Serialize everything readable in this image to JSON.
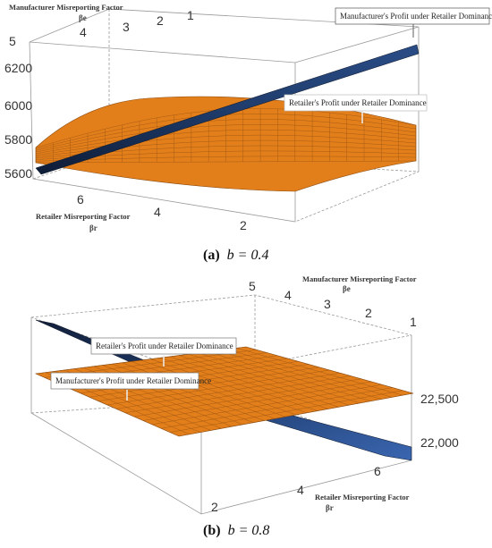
{
  "chart_data": [
    {
      "type": "surface3d",
      "caption": {
        "letter": "(a)",
        "expr": "b = 0.4"
      },
      "axes": {
        "be": {
          "label": "Manufacturer Misreporting Factor",
          "symbol": "βe",
          "ticks": [
            "5",
            "4",
            "3",
            "2",
            "1"
          ]
        },
        "br": {
          "label": "Retailer Misreporting Factor",
          "symbol": "βr",
          "ticks": [
            "6",
            "4",
            "2"
          ]
        },
        "z": {
          "ticks": [
            "6200",
            "6000",
            "5800",
            "5600"
          ],
          "range": [
            5560,
            6300
          ]
        }
      },
      "series": [
        {
          "name": "Manufacturer's Profit under Retailer Dominance",
          "color": "#1e3a66",
          "z_range": [
            5580,
            6280
          ]
        },
        {
          "name": "Retailer's Profit under Retailer Dominance",
          "color": "#e0801c",
          "z_range": [
            5700,
            6010
          ]
        }
      ]
    },
    {
      "type": "surface3d",
      "caption": {
        "letter": "(b)",
        "expr": "b = 0.8"
      },
      "axes": {
        "be": {
          "label": "Manufacturer Misreporting Factor",
          "symbol": "βe",
          "ticks": [
            "5",
            "4",
            "3",
            "2",
            "1"
          ]
        },
        "br": {
          "label": "Retailer Misreporting Factor",
          "symbol": "βr",
          "ticks": [
            "2",
            "4",
            "6"
          ]
        },
        "z": {
          "ticks": [
            "22,500",
            "22,000"
          ],
          "range": [
            21700,
            22900
          ]
        }
      },
      "series": [
        {
          "name": "Retailer's Profit under Retailer Dominance",
          "color": "#e0801c",
          "z_range": [
            22300,
            22600
          ]
        },
        {
          "name": "Manufacturer's Profit under Retailer Dominance",
          "color": "#1e3a66",
          "z_range": [
            21800,
            22800
          ]
        }
      ]
    }
  ]
}
